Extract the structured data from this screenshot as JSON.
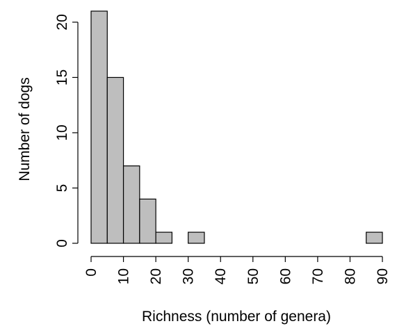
{
  "chart_data": {
    "type": "bar",
    "histogram": true,
    "title": "",
    "xlabel": "Richness (number of genera)",
    "ylabel": "Number of dogs",
    "bin_edges": [
      0,
      5,
      10,
      15,
      20,
      25,
      30,
      35,
      40,
      45,
      50,
      55,
      60,
      65,
      70,
      75,
      80,
      85,
      90
    ],
    "values": [
      21,
      15,
      7,
      4,
      1,
      0,
      1,
      0,
      0,
      0,
      0,
      0,
      0,
      0,
      0,
      0,
      0,
      1
    ],
    "xlim": [
      0,
      90
    ],
    "ylim": [
      0,
      21
    ],
    "x_ticks": [
      "0",
      "10",
      "20",
      "30",
      "40",
      "50",
      "60",
      "70",
      "80",
      "90"
    ],
    "y_ticks": [
      "0",
      "5",
      "10",
      "15",
      "20"
    ],
    "bar_color": "#bebebe",
    "grid": false
  }
}
